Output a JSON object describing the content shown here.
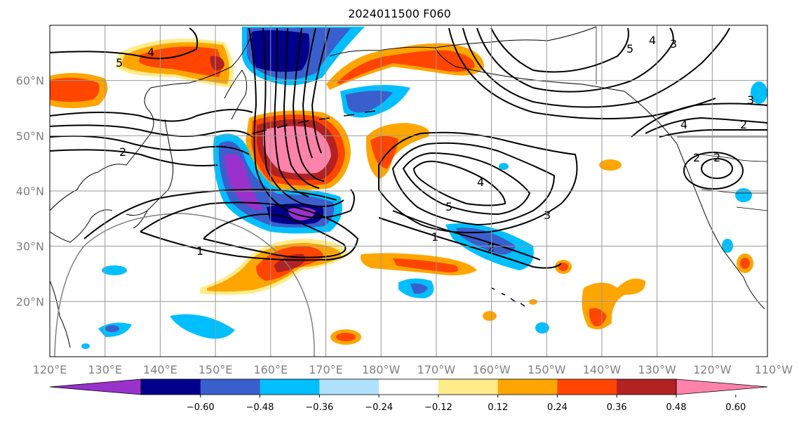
{
  "title": "2024011500 F060",
  "map": {
    "projection": "equirectangular",
    "lon_range": [
      120,
      250
    ],
    "lat_range": [
      10,
      70
    ],
    "lat_ticks": [
      {
        "value": 20,
        "label": "20°N"
      },
      {
        "value": 30,
        "label": "30°N"
      },
      {
        "value": 40,
        "label": "40°N"
      },
      {
        "value": 50,
        "label": "50°N"
      },
      {
        "value": 60,
        "label": "60°N"
      }
    ],
    "lon_ticks": [
      {
        "value": 120,
        "label": "120°E"
      },
      {
        "value": 130,
        "label": "130°E"
      },
      {
        "value": 140,
        "label": "140°E"
      },
      {
        "value": 150,
        "label": "150°E"
      },
      {
        "value": 160,
        "label": "160°E"
      },
      {
        "value": 170,
        "label": "170°E"
      },
      {
        "value": 180,
        "label": "180°W"
      },
      {
        "value": 190,
        "label": "170°W"
      },
      {
        "value": 200,
        "label": "160°W"
      },
      {
        "value": 210,
        "label": "150°W"
      },
      {
        "value": 220,
        "label": "140°W"
      },
      {
        "value": 230,
        "label": "130°W"
      },
      {
        "value": 240,
        "label": "120°W"
      },
      {
        "value": 250,
        "label": "110°W"
      }
    ],
    "gridlines": true,
    "colorbar": {
      "orientation": "horizontal",
      "extend": "both",
      "colors": [
        "#9932cc",
        "#00008b",
        "#3a5fcd",
        "#00bfff",
        "#b0e2ff",
        "#ffffff",
        "#ffec8b",
        "#ffa500",
        "#ff4500",
        "#b22222",
        "#ff82ab"
      ],
      "tick_labels": [
        "−0.60",
        "−0.48",
        "−0.36",
        "−0.24",
        "−0.12",
        "0.12",
        "0.24",
        "0.36",
        "0.48",
        "0.60"
      ]
    },
    "contour_labels": [
      "5",
      "4",
      "2",
      "1",
      "2",
      "4",
      "5",
      "1",
      "2",
      "3",
      "4",
      "2",
      "3",
      "2",
      "4",
      "3",
      "5"
    ],
    "shaded_features": [
      {
        "color": "#ff4500",
        "lon": 144,
        "lat": 61
      },
      {
        "color": "#ffa500",
        "lon": 122,
        "lat": 58
      },
      {
        "color": "#00008b",
        "lon": 158,
        "lat": 64
      },
      {
        "color": "#ff4500",
        "lon": 180,
        "lat": 62
      },
      {
        "color": "#ff82ab",
        "lon": 164,
        "lat": 47
      },
      {
        "color": "#9932cc",
        "lon": 155,
        "lat": 40
      },
      {
        "color": "#3a5fcd",
        "lon": 163,
        "lat": 36
      },
      {
        "color": "#ff4500",
        "lon": 164,
        "lat": 28
      },
      {
        "color": "#00bfff",
        "lon": 203,
        "lat": 30
      },
      {
        "color": "#ff4500",
        "lon": 195,
        "lat": 26
      },
      {
        "color": "#ff4500",
        "lon": 223,
        "lat": 18
      },
      {
        "color": "#ff4500",
        "lon": 185,
        "lat": 45
      }
    ]
  }
}
